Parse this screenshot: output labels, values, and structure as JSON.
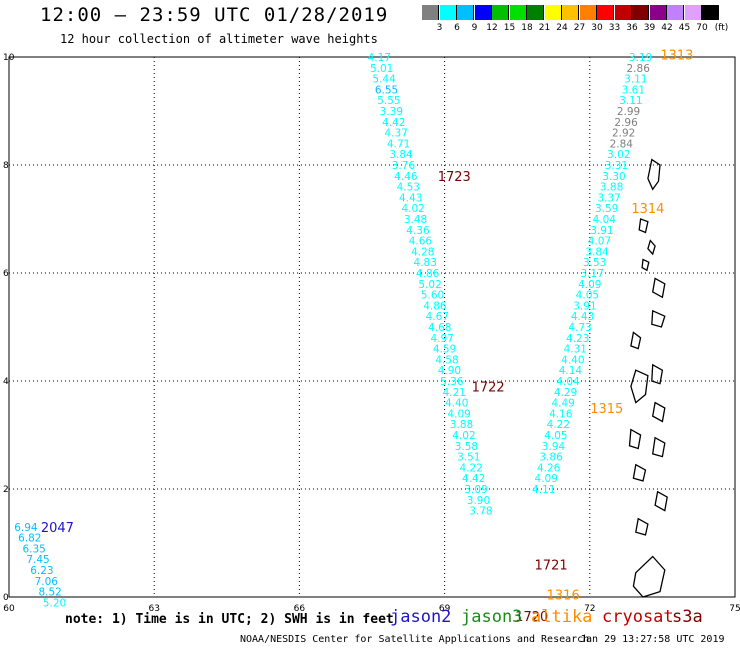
{
  "header": {
    "title": "12:00 – 23:59 UTC 01/28/2019",
    "subtitle": "12 hour collection of altimeter wave heights"
  },
  "colorbar": {
    "colors": [
      "#808080",
      "#00ffff",
      "#00bfff",
      "#0000ff",
      "#00c000",
      "#00e000",
      "#008000",
      "#ffff00",
      "#ffc000",
      "#ff8000",
      "#ff0000",
      "#c00000",
      "#800000",
      "#8b008b",
      "#c080ff",
      "#e0a0ff",
      "#000000"
    ],
    "labels": [
      "3",
      "6",
      "9",
      "12",
      "15",
      "18",
      "21",
      "24",
      "27",
      "30",
      "33",
      "36",
      "39",
      "42",
      "45",
      "70",
      "(ft)"
    ]
  },
  "axes": {
    "x_ticks": [
      "60",
      "63",
      "66",
      "69",
      "72",
      "75"
    ],
    "y_ticks": [
      "0",
      "2",
      "4",
      "6",
      "8",
      "10"
    ]
  },
  "chart_data": {
    "type": "scatter",
    "xlim": [
      60,
      75
    ],
    "ylim": [
      0,
      10
    ],
    "grid": true,
    "tracks": [
      {
        "satellite": "jason2",
        "time": "2047",
        "color": "#1e14c8",
        "label_pos": [
          61,
          1.3
        ],
        "points": [
          {
            "lon": 60.35,
            "lat": 1.3,
            "v": "6.94"
          },
          {
            "lon": 60.43,
            "lat": 1.1,
            "v": "6.82"
          },
          {
            "lon": 60.52,
            "lat": 0.9,
            "v": "6.35"
          },
          {
            "lon": 60.6,
            "lat": 0.7,
            "v": "7.45"
          },
          {
            "lon": 60.68,
            "lat": 0.5,
            "v": "6.23"
          },
          {
            "lon": 60.77,
            "lat": 0.3,
            "v": "7.06"
          },
          {
            "lon": 60.85,
            "lat": 0.1,
            "v": "8.52"
          },
          {
            "lon": 60.94,
            "lat": -0.1,
            "v": "5.20"
          }
        ]
      },
      {
        "satellite": "cryosat",
        "time": "1723",
        "color": "#7a0000",
        "label_pos": [
          69.2,
          7.8
        ],
        "points": [
          {
            "lon": 67.65,
            "lat": 10.0,
            "v": "4.17"
          },
          {
            "lon": 67.7,
            "lat": 9.8,
            "v": "5.01"
          },
          {
            "lon": 67.75,
            "lat": 9.6,
            "v": "5.44"
          },
          {
            "lon": 67.8,
            "lat": 9.4,
            "v": "6.55"
          },
          {
            "lon": 67.85,
            "lat": 9.2,
            "v": "5.55"
          },
          {
            "lon": 67.9,
            "lat": 9.0,
            "v": "3.39"
          },
          {
            "lon": 67.95,
            "lat": 8.8,
            "v": "4.42"
          },
          {
            "lon": 68.0,
            "lat": 8.6,
            "v": "4.37"
          },
          {
            "lon": 68.05,
            "lat": 8.4,
            "v": "4.71"
          },
          {
            "lon": 68.1,
            "lat": 8.2,
            "v": "3.84"
          }
        ]
      },
      {
        "satellite": "cryosat",
        "time": "1722",
        "color": "#7a0000",
        "label_pos": [
          69.9,
          3.9
        ],
        "points": [
          {
            "lon": 68.15,
            "lat": 8.0,
            "v": "3.76"
          },
          {
            "lon": 68.2,
            "lat": 7.8,
            "v": "4.46"
          },
          {
            "lon": 68.25,
            "lat": 7.6,
            "v": "4.53"
          },
          {
            "lon": 68.3,
            "lat": 7.4,
            "v": "4.43"
          },
          {
            "lon": 68.35,
            "lat": 7.2,
            "v": "4.02"
          },
          {
            "lon": 68.4,
            "lat": 7.0,
            "v": "3.48"
          },
          {
            "lon": 68.45,
            "lat": 6.8,
            "v": "4.36"
          },
          {
            "lon": 68.5,
            "lat": 6.6,
            "v": "4.66"
          },
          {
            "lon": 68.55,
            "lat": 6.4,
            "v": "4.28"
          },
          {
            "lon": 68.6,
            "lat": 6.2,
            "v": "4.83"
          },
          {
            "lon": 68.65,
            "lat": 6.0,
            "v": "4.86"
          },
          {
            "lon": 68.7,
            "lat": 5.8,
            "v": "5.02"
          },
          {
            "lon": 68.75,
            "lat": 5.6,
            "v": "5.60"
          },
          {
            "lon": 68.8,
            "lat": 5.4,
            "v": "4.86"
          },
          {
            "lon": 68.85,
            "lat": 5.2,
            "v": "4.67"
          },
          {
            "lon": 68.9,
            "lat": 5.0,
            "v": "4.68"
          },
          {
            "lon": 68.95,
            "lat": 4.8,
            "v": "4.97"
          },
          {
            "lon": 69.0,
            "lat": 4.6,
            "v": "4.59"
          },
          {
            "lon": 69.05,
            "lat": 4.4,
            "v": "4.58"
          },
          {
            "lon": 69.1,
            "lat": 4.2,
            "v": "4.90"
          },
          {
            "lon": 69.15,
            "lat": 4.0,
            "v": "5.36"
          },
          {
            "lon": 69.2,
            "lat": 3.8,
            "v": "4.21"
          },
          {
            "lon": 69.25,
            "lat": 3.6,
            "v": "4.40"
          },
          {
            "lon": 69.3,
            "lat": 3.4,
            "v": "4.09"
          },
          {
            "lon": 69.35,
            "lat": 3.2,
            "v": "3.88"
          },
          {
            "lon": 69.4,
            "lat": 3.0,
            "v": "4.02"
          },
          {
            "lon": 69.45,
            "lat": 2.8,
            "v": "3.58"
          },
          {
            "lon": 69.5,
            "lat": 2.6,
            "v": "3.51"
          },
          {
            "lon": 69.55,
            "lat": 2.4,
            "v": "4.22"
          },
          {
            "lon": 69.6,
            "lat": 2.2,
            "v": "4.42"
          }
        ]
      },
      {
        "satellite": "cryosat",
        "time": "1721",
        "color": "#7a0000",
        "label_pos": [
          71.2,
          0.6
        ],
        "points": [
          {
            "lon": 69.65,
            "lat": 2.0,
            "v": "3.09"
          },
          {
            "lon": 69.7,
            "lat": 1.8,
            "v": "3.90"
          },
          {
            "lon": 69.75,
            "lat": 1.6,
            "v": "3.78"
          }
        ]
      },
      {
        "satellite": "cryosat",
        "time": "1720",
        "color": "#7a0000",
        "label_pos": [
          70.8,
          -0.35
        ],
        "points": []
      },
      {
        "satellite": "altika",
        "time": "1313",
        "color": "#ff8c00",
        "label_pos": [
          73.8,
          10.05
        ],
        "points": [
          {
            "lon": 73.05,
            "lat": 10.0,
            "v": "3.19"
          },
          {
            "lon": 73.0,
            "lat": 9.8,
            "v": "2.86"
          },
          {
            "lon": 72.95,
            "lat": 9.6,
            "v": "3.11"
          },
          {
            "lon": 72.9,
            "lat": 9.4,
            "v": "3.61"
          },
          {
            "lon": 72.85,
            "lat": 9.2,
            "v": "3.11"
          },
          {
            "lon": 72.8,
            "lat": 9.0,
            "v": "2.99"
          },
          {
            "lon": 72.75,
            "lat": 8.8,
            "v": "2.96"
          },
          {
            "lon": 72.7,
            "lat": 8.6,
            "v": "2.92"
          },
          {
            "lon": 72.65,
            "lat": 8.4,
            "v": "2.84"
          }
        ]
      },
      {
        "satellite": "altika",
        "time": "1314",
        "color": "#ff8c00",
        "label_pos": [
          73.2,
          7.2
        ],
        "points": [
          {
            "lon": 72.6,
            "lat": 8.2,
            "v": "3.02"
          },
          {
            "lon": 72.55,
            "lat": 8.0,
            "v": "3.31"
          },
          {
            "lon": 72.5,
            "lat": 7.8,
            "v": "3.30"
          },
          {
            "lon": 72.45,
            "lat": 7.6,
            "v": "3.88"
          },
          {
            "lon": 72.4,
            "lat": 7.4,
            "v": "3.37"
          },
          {
            "lon": 72.35,
            "lat": 7.2,
            "v": "3.59"
          },
          {
            "lon": 72.3,
            "lat": 7.0,
            "v": "4.04"
          },
          {
            "lon": 72.25,
            "lat": 6.8,
            "v": "3.91"
          },
          {
            "lon": 72.2,
            "lat": 6.6,
            "v": "4.07"
          },
          {
            "lon": 72.15,
            "lat": 6.4,
            "v": "3.84"
          },
          {
            "lon": 72.1,
            "lat": 6.2,
            "v": "3.53"
          },
          {
            "lon": 72.05,
            "lat": 6.0,
            "v": "3.17"
          },
          {
            "lon": 72.0,
            "lat": 5.8,
            "v": "4.09"
          },
          {
            "lon": 71.95,
            "lat": 5.6,
            "v": "4.05"
          },
          {
            "lon": 71.9,
            "lat": 5.4,
            "v": "3.91"
          },
          {
            "lon": 71.85,
            "lat": 5.2,
            "v": "4.43"
          },
          {
            "lon": 71.8,
            "lat": 5.0,
            "v": "4.73"
          },
          {
            "lon": 71.75,
            "lat": 4.8,
            "v": "4.23"
          }
        ]
      },
      {
        "satellite": "altika",
        "time": "1315",
        "color": "#ff8c00",
        "label_pos": [
          72.35,
          3.5
        ],
        "points": [
          {
            "lon": 71.7,
            "lat": 4.6,
            "v": "4.31"
          },
          {
            "lon": 71.65,
            "lat": 4.4,
            "v": "4.40"
          },
          {
            "lon": 71.6,
            "lat": 4.2,
            "v": "4.14"
          },
          {
            "lon": 71.55,
            "lat": 4.0,
            "v": "4.04"
          },
          {
            "lon": 71.5,
            "lat": 3.8,
            "v": "4.29"
          },
          {
            "lon": 71.45,
            "lat": 3.6,
            "v": "4.49"
          },
          {
            "lon": 71.4,
            "lat": 3.4,
            "v": "4.16"
          },
          {
            "lon": 71.35,
            "lat": 3.2,
            "v": "4.22"
          },
          {
            "lon": 71.3,
            "lat": 3.0,
            "v": "4.05"
          },
          {
            "lon": 71.25,
            "lat": 2.8,
            "v": "3.94"
          },
          {
            "lon": 71.2,
            "lat": 2.6,
            "v": "3.86"
          },
          {
            "lon": 71.15,
            "lat": 2.4,
            "v": "4.26"
          }
        ]
      },
      {
        "satellite": "altika",
        "time": "1316",
        "color": "#ff8c00",
        "label_pos": [
          71.45,
          0.05
        ],
        "points": [
          {
            "lon": 71.1,
            "lat": 2.2,
            "v": "4.09"
          },
          {
            "lon": 71.05,
            "lat": 2.0,
            "v": "4.11"
          }
        ]
      }
    ]
  },
  "legend": {
    "note": "note: 1) Time is in UTC; 2) SWH is in feet",
    "items": [
      {
        "label": "jason2",
        "color": "#1e14c8"
      },
      {
        "label": "jason3",
        "color": "#1a8c1a"
      },
      {
        "label": "altika",
        "color": "#ff8c00"
      },
      {
        "label": "cryosat",
        "color": "#c00000"
      },
      {
        "label": "s3a",
        "color": "#800000"
      }
    ]
  },
  "footer": {
    "credit": "NOAA/NESDIS Center for Satellite Applications and Research",
    "stamp": "Jan 29 13:27:58 UTC 2019"
  }
}
